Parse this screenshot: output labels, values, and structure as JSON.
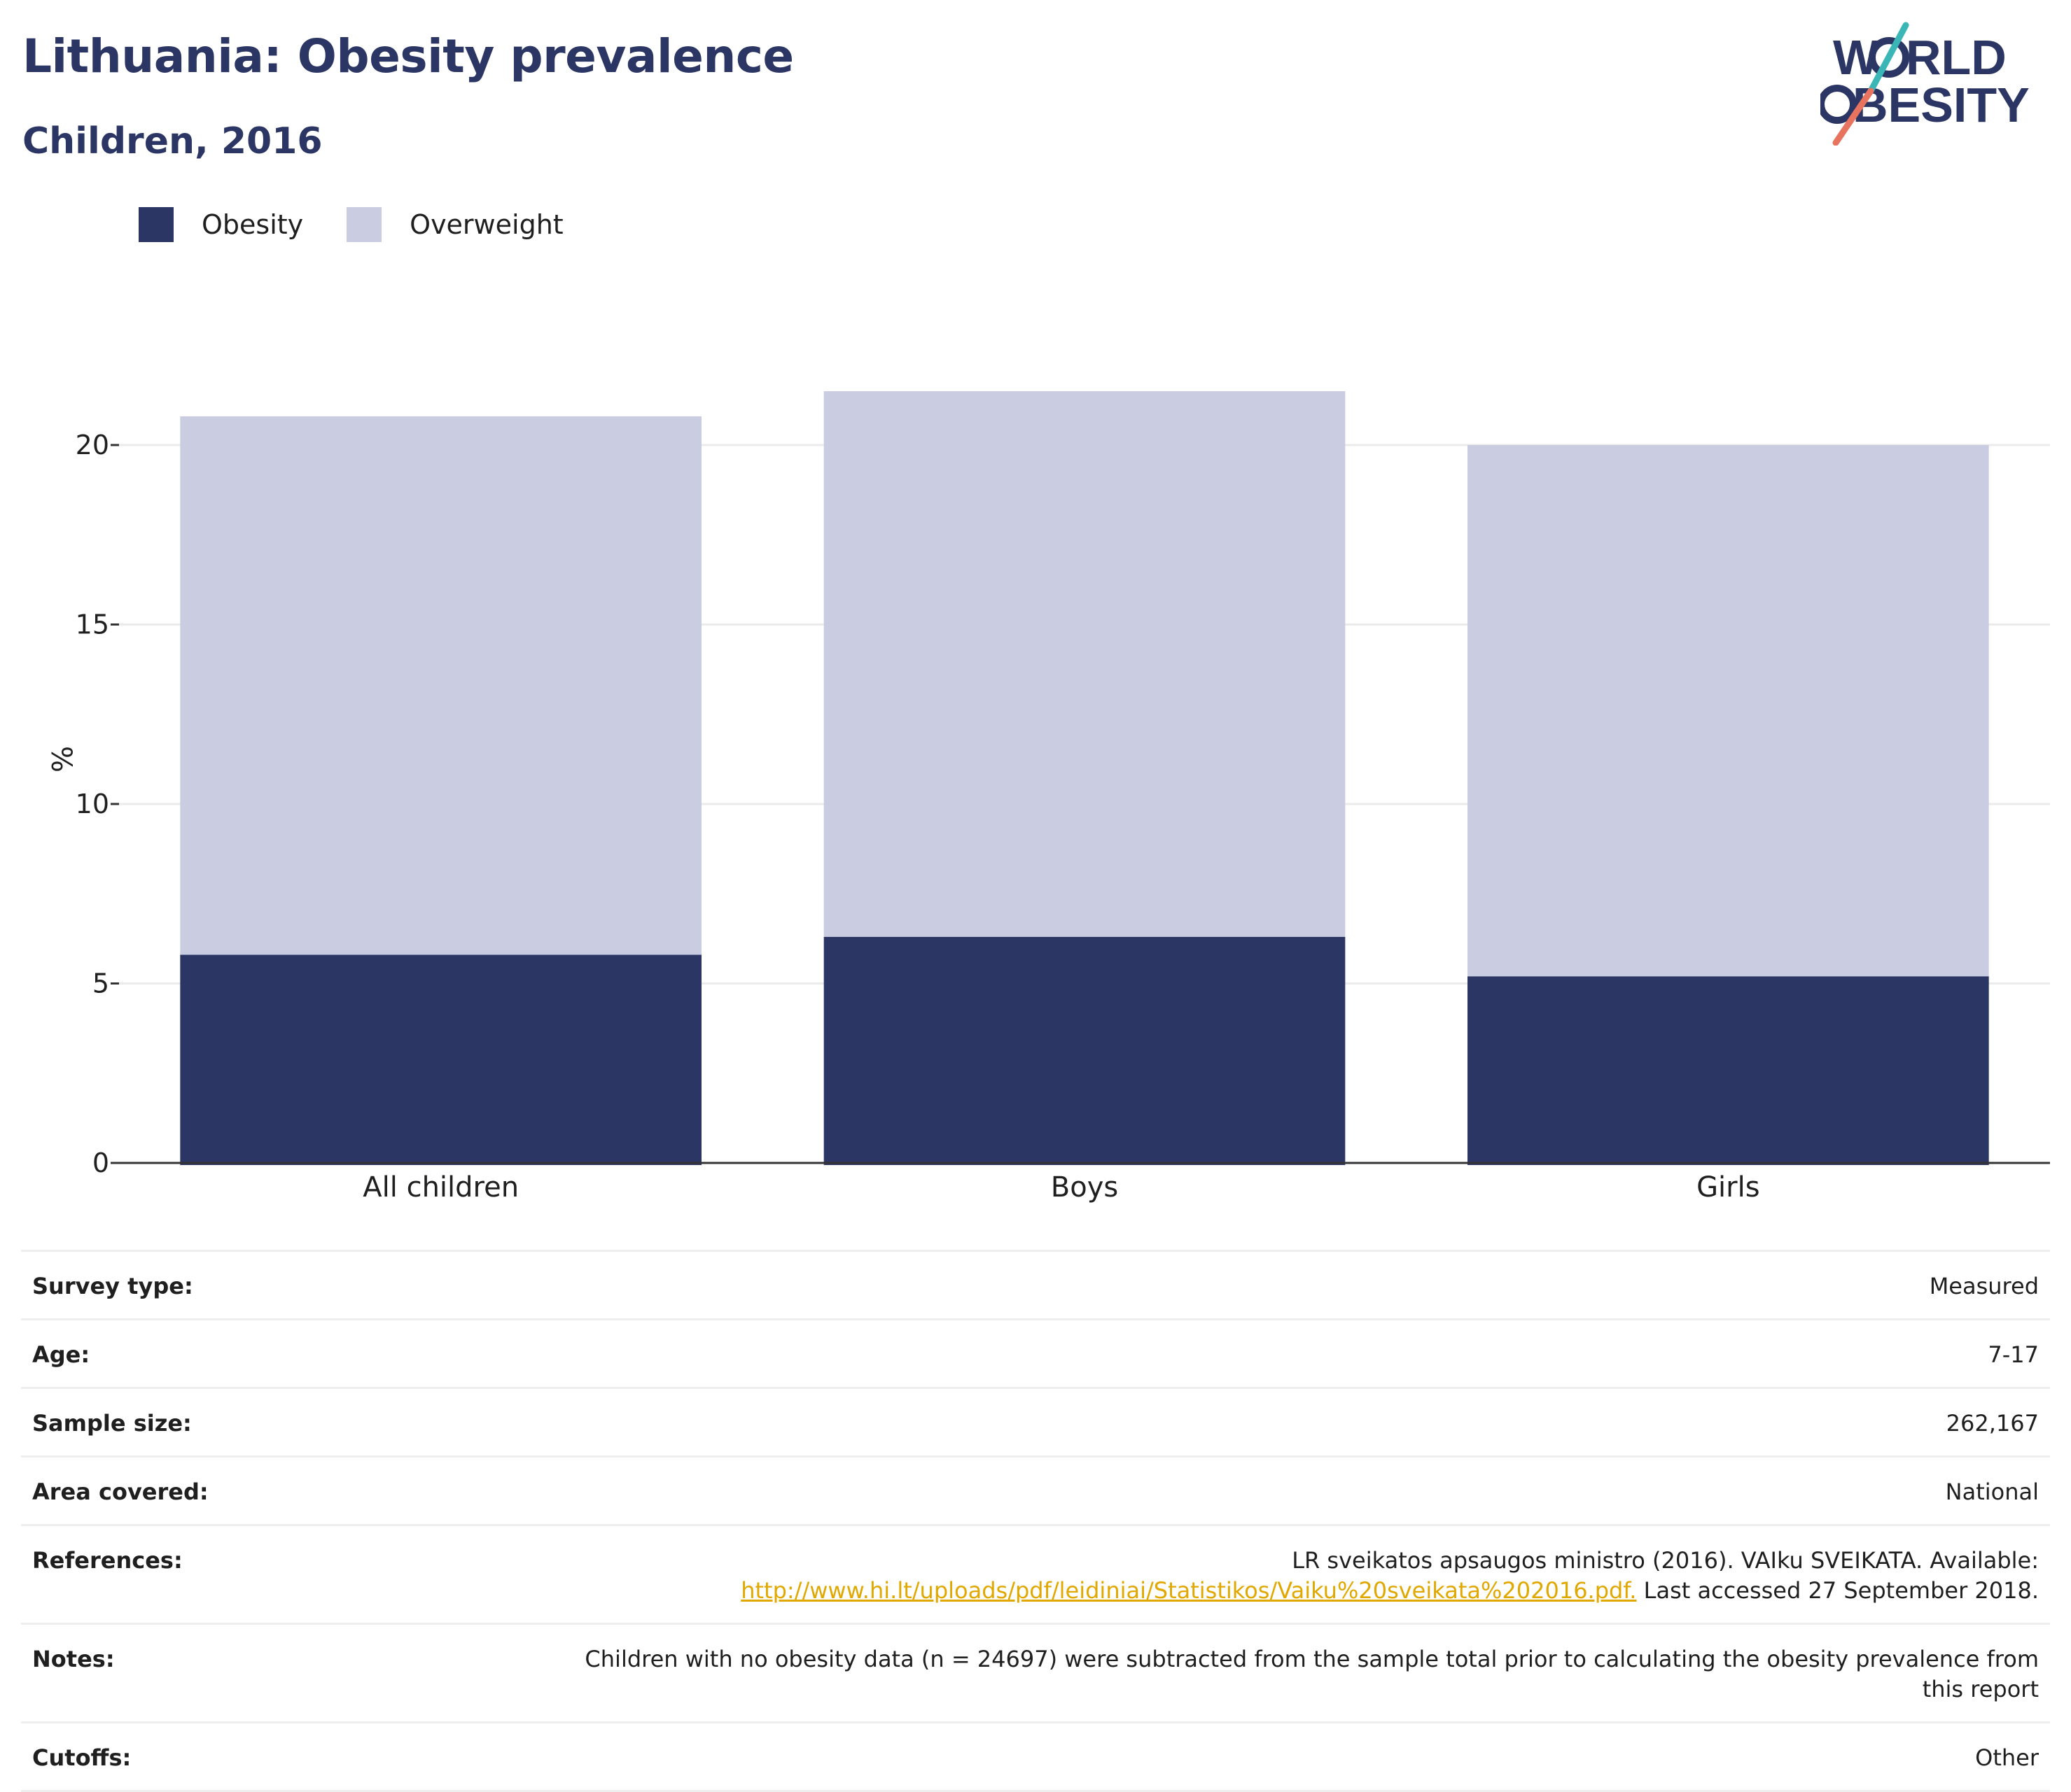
{
  "header": {
    "title": "Lithuania: Obesity prevalence",
    "subtitle": "Children, 2016"
  },
  "logo": {
    "line1": "WORLD",
    "line2": "OBESITY",
    "accent_teal": "#3bb6b7",
    "accent_coral": "#e8735e"
  },
  "legend": [
    {
      "label": "Obesity",
      "color": "#2b3664"
    },
    {
      "label": "Overweight",
      "color": "#cacce1"
    }
  ],
  "chart_data": {
    "type": "bar",
    "stacked": true,
    "categories": [
      "All children",
      "Boys",
      "Girls"
    ],
    "series": [
      {
        "name": "Obesity",
        "values": [
          5.8,
          6.3,
          5.2
        ],
        "color": "#2b3664"
      },
      {
        "name": "Overweight",
        "values": [
          15.0,
          15.2,
          14.8
        ],
        "color": "#cacce1"
      }
    ],
    "totals": [
      20.8,
      21.5,
      20.0
    ],
    "ylabel": "%",
    "xlabel": "",
    "ylim": [
      0,
      22
    ],
    "yticks": [
      0,
      5,
      10,
      15,
      20
    ],
    "grid": true,
    "legend_position": "top-left"
  },
  "meta": [
    {
      "label": "Survey type:",
      "value": "Measured"
    },
    {
      "label": "Age:",
      "value": "7-17"
    },
    {
      "label": "Sample size:",
      "value": "262,167"
    },
    {
      "label": "Area covered:",
      "value": "National"
    },
    {
      "label": "References:",
      "value_line1": "LR sveikatos apsaugos ministro (2016). VAIku SVEIKATA. Available:",
      "link": "http://www.hi.lt/uploads/pdf/leidiniai/Statistikos/Vaiku%20sveikata%202016.pdf.",
      "value_tail": " Last accessed 27 September 2018."
    },
    {
      "label": "Notes:",
      "value": "Children with no obesity data (n = 24697) were subtracted from the sample total prior to calculating the obesity prevalence from this report"
    },
    {
      "label": "Cutoffs:",
      "value": "Other"
    }
  ]
}
